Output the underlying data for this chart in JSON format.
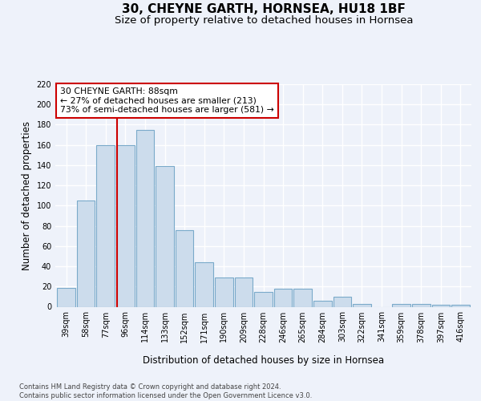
{
  "title1": "30, CHEYNE GARTH, HORNSEA, HU18 1BF",
  "title2": "Size of property relative to detached houses in Hornsea",
  "xlabel": "Distribution of detached houses by size in Hornsea",
  "ylabel": "Number of detached properties",
  "categories": [
    "39sqm",
    "58sqm",
    "77sqm",
    "96sqm",
    "114sqm",
    "133sqm",
    "152sqm",
    "171sqm",
    "190sqm",
    "209sqm",
    "228sqm",
    "246sqm",
    "265sqm",
    "284sqm",
    "303sqm",
    "322sqm",
    "341sqm",
    "359sqm",
    "378sqm",
    "397sqm",
    "416sqm"
  ],
  "values": [
    19,
    105,
    160,
    160,
    175,
    139,
    76,
    44,
    29,
    29,
    15,
    18,
    18,
    6,
    10,
    3,
    0,
    3,
    3,
    2,
    2
  ],
  "bar_color": "#ccdcec",
  "bar_edge_color": "#7aaaca",
  "red_line_x": 2.58,
  "annotation_text": "30 CHEYNE GARTH: 88sqm\n← 27% of detached houses are smaller (213)\n73% of semi-detached houses are larger (581) →",
  "annotation_box_color": "#ffffff",
  "annotation_box_edge": "#cc0000",
  "footer": "Contains HM Land Registry data © Crown copyright and database right 2024.\nContains public sector information licensed under the Open Government Licence v3.0.",
  "ylim": [
    0,
    220
  ],
  "yticks": [
    0,
    20,
    40,
    60,
    80,
    100,
    120,
    140,
    160,
    180,
    200,
    220
  ],
  "bg_color": "#eef2fa",
  "grid_color": "#ffffff",
  "title1_fontsize": 11,
  "title2_fontsize": 9.5,
  "ylabel_fontsize": 8.5,
  "xlabel_fontsize": 8.5,
  "tick_fontsize": 7,
  "annot_fontsize": 7.8,
  "footer_fontsize": 6
}
